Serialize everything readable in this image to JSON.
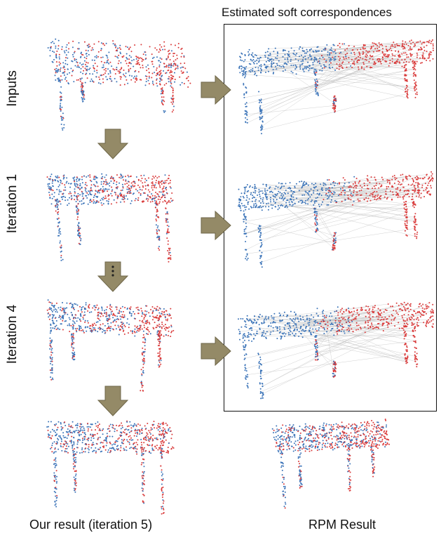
{
  "labels": {
    "top_title": "Estimated soft correspondences",
    "rows": [
      "Inputs",
      "Iteration 1",
      "Iteration 4"
    ],
    "caption_left": "Our result (iteration 5)",
    "caption_right": "RPM Result"
  },
  "colors": {
    "blue": "#3a73b8",
    "red": "#d93a3a",
    "line": "#bdbdbd",
    "arrow_fill": "#948a67",
    "arrow_stroke": "#6e6648"
  }
}
